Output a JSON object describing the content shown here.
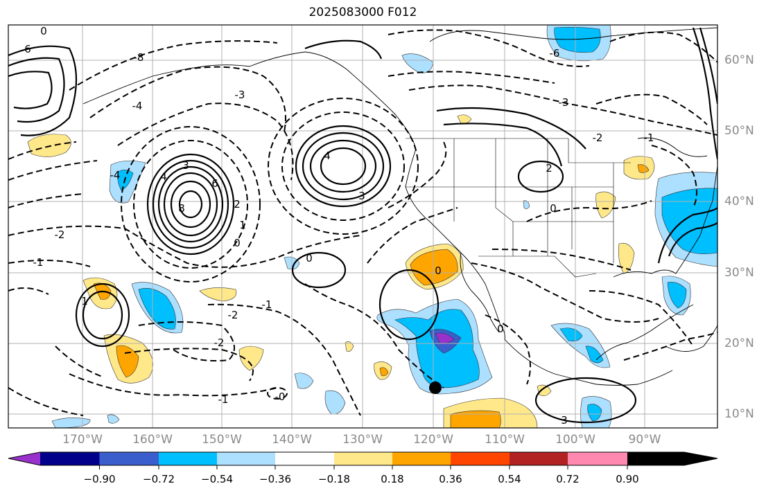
{
  "title": "2025083000 F012",
  "lon_labels": [
    "170°W",
    "160°W",
    "150°W",
    "140°W",
    "130°W",
    "120°W",
    "110°W",
    "100°W",
    "90°W"
  ],
  "lat_labels": [
    "60°N",
    "50°N",
    "40°N",
    "30°N",
    "20°N",
    "10°N"
  ],
  "colorbar": {
    "tick_labels": [
      "−0.90",
      "−0.72",
      "−0.54",
      "−0.36",
      "−0.18",
      "0.18",
      "0.36",
      "0.54",
      "0.72",
      "0.90"
    ],
    "colors": [
      "#9932CC",
      "#00008B",
      "#3A5FCD",
      "#00BFFF",
      "#ADDFFF",
      "#FFFFFF",
      "#FFE88A",
      "#FFA500",
      "#FF4500",
      "#B22222",
      "#FF88B0"
    ]
  },
  "contour_labels": [
    "8",
    "6",
    "4",
    "3",
    "2",
    "1",
    "0",
    "-1",
    "-2",
    "-3",
    "-4",
    "-6",
    "-8",
    "0",
    "3",
    "4",
    "6",
    "-2",
    "-1",
    "-0",
    "0",
    "-1",
    "-2",
    "-3",
    "-4",
    "0",
    "1",
    "2",
    "3",
    "-2",
    "-1",
    "0",
    "0"
  ],
  "marker": {
    "label": "storm-center",
    "lon": -120.1,
    "lat": 13.5
  }
}
